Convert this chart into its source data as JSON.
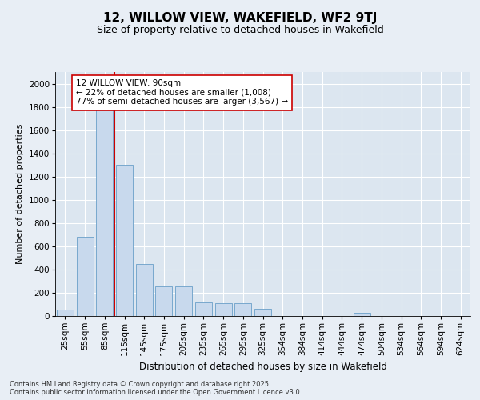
{
  "title": "12, WILLOW VIEW, WAKEFIELD, WF2 9TJ",
  "subtitle": "Size of property relative to detached houses in Wakefield",
  "xlabel": "Distribution of detached houses by size in Wakefield",
  "ylabel": "Number of detached properties",
  "categories": [
    "25sqm",
    "55sqm",
    "85sqm",
    "115sqm",
    "145sqm",
    "175sqm",
    "205sqm",
    "235sqm",
    "265sqm",
    "295sqm",
    "325sqm",
    "354sqm",
    "384sqm",
    "414sqm",
    "444sqm",
    "474sqm",
    "504sqm",
    "534sqm",
    "564sqm",
    "594sqm",
    "624sqm"
  ],
  "values": [
    55,
    680,
    1980,
    1300,
    450,
    255,
    255,
    120,
    110,
    110,
    60,
    0,
    0,
    0,
    0,
    30,
    0,
    0,
    0,
    0,
    0
  ],
  "bar_color": "#c8d9ed",
  "bar_edge_color": "#6a9fc8",
  "vline_color": "#cc0000",
  "annotation_text": "12 WILLOW VIEW: 90sqm\n← 22% of detached houses are smaller (1,008)\n77% of semi-detached houses are larger (3,567) →",
  "annotation_box_facecolor": "#ffffff",
  "annotation_box_edgecolor": "#cc0000",
  "ylim": [
    0,
    2100
  ],
  "yticks": [
    0,
    200,
    400,
    600,
    800,
    1000,
    1200,
    1400,
    1600,
    1800,
    2000
  ],
  "plot_bg_color": "#dce6f0",
  "fig_bg_color": "#e8eef5",
  "grid_color": "#ffffff",
  "footnote": "Contains HM Land Registry data © Crown copyright and database right 2025.\nContains public sector information licensed under the Open Government Licence v3.0.",
  "title_fontsize": 11,
  "subtitle_fontsize": 9,
  "xlabel_fontsize": 8.5,
  "ylabel_fontsize": 8,
  "tick_fontsize": 7.5,
  "annot_fontsize": 7.5,
  "footnote_fontsize": 6
}
